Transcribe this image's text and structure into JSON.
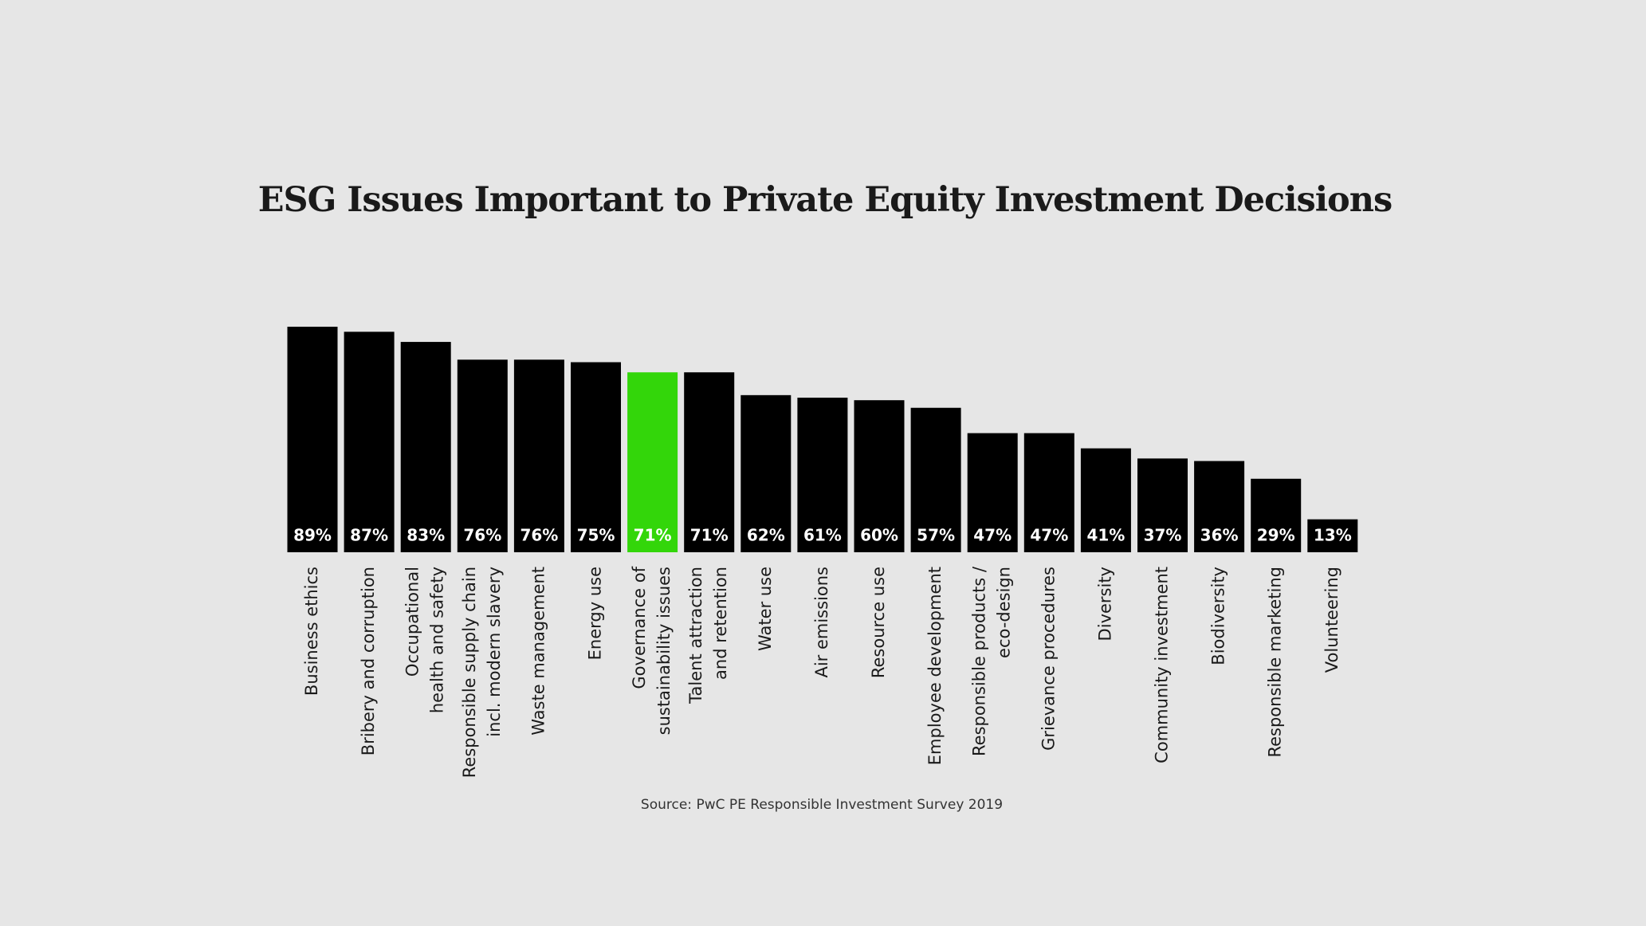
{
  "chart_data": {
    "type": "bar",
    "title": "ESG Issues Important to Private Equity Investment Decisions",
    "source": "Source: PwC PE Responsible Investment Survey 2019",
    "categories": [
      "Business ethics",
      "Bribery and corruption",
      "Occupational\nhealth and safety",
      "Responsible supply chain\nincl. modern slavery",
      "Waste management",
      "Energy use",
      "Governance of\nsustainability issues",
      "Talent attraction\nand retention",
      "Water use",
      "Air emissions",
      "Resource use",
      "Employee development",
      "Responsible products /\neco-design",
      "Grievance procedures",
      "Diversity",
      "Community investment",
      "Biodiversity",
      "Responsible marketing",
      "Volunteering"
    ],
    "values": [
      89,
      87,
      83,
      76,
      76,
      75,
      71,
      71,
      62,
      61,
      60,
      57,
      47,
      47,
      41,
      37,
      36,
      29,
      13
    ],
    "value_labels": [
      "89%",
      "87%",
      "83%",
      "76%",
      "76%",
      "75%",
      "71%",
      "71%",
      "62%",
      "61%",
      "60%",
      "57%",
      "47%",
      "47%",
      "41%",
      "37%",
      "36%",
      "29%",
      "13%"
    ],
    "colors": [
      "#000000",
      "#000000",
      "#000000",
      "#000000",
      "#000000",
      "#000000",
      "#33d60a",
      "#000000",
      "#000000",
      "#000000",
      "#000000",
      "#000000",
      "#000000",
      "#000000",
      "#000000",
      "#000000",
      "#000000",
      "#000000",
      "#000000"
    ]
  }
}
